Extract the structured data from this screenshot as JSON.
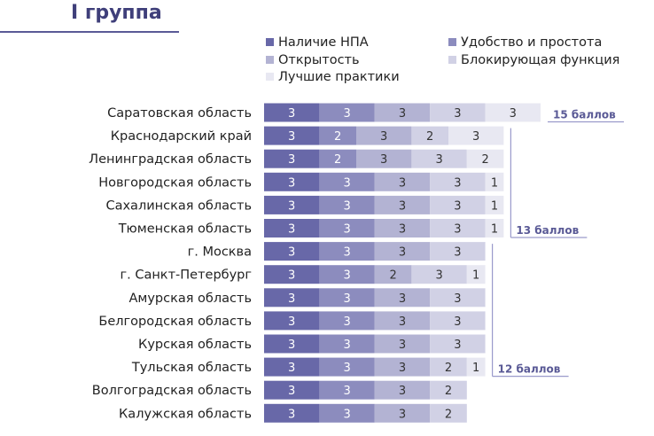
{
  "header": {
    "title": "I группа"
  },
  "colors": {
    "s0": "#6868a8",
    "s1": "#8c8cbe",
    "s2": "#b3b3d3",
    "s3": "#d1d1e5",
    "s4": "#e8e8f2",
    "bracket": "#9a9acb",
    "bracket_text": "#5a5a96"
  },
  "chart_data": {
    "type": "bar",
    "orientation": "horizontal",
    "stacked": true,
    "legend_position": "top-right",
    "grid": false,
    "categories": [
      "Саратовская область",
      "Краснодарский край",
      "Ленинградская область",
      "Новгородская область",
      "Сахалинская область",
      "Тюменская область",
      "г. Москва",
      "г. Санкт-Петербург",
      "Амурская область",
      "Белгородская область",
      "Курская область",
      "Тульская область",
      "Волгоградская область",
      "Калужская область"
    ],
    "series": [
      {
        "name": "Наличие НПА",
        "values": [
          3,
          3,
          3,
          3,
          3,
          3,
          3,
          3,
          3,
          3,
          3,
          3,
          3,
          3
        ]
      },
      {
        "name": "Удобство и простота",
        "values": [
          3,
          2,
          2,
          3,
          3,
          3,
          3,
          3,
          3,
          3,
          3,
          3,
          3,
          3
        ]
      },
      {
        "name": "Открытость",
        "values": [
          3,
          3,
          3,
          3,
          3,
          3,
          3,
          2,
          3,
          3,
          3,
          3,
          3,
          3
        ]
      },
      {
        "name": "Блокирующая функция",
        "values": [
          3,
          2,
          3,
          3,
          3,
          3,
          3,
          3,
          3,
          3,
          3,
          2,
          2,
          2
        ]
      },
      {
        "name": "Лучшие практики",
        "values": [
          3,
          3,
          2,
          1,
          1,
          1,
          0,
          1,
          0,
          0,
          0,
          1,
          0,
          0
        ]
      }
    ],
    "brackets": [
      {
        "label": "15 баллов",
        "from": 0,
        "to": 0
      },
      {
        "label": "13 баллов",
        "from": 1,
        "to": 5
      },
      {
        "label": "12 баллов",
        "from": 6,
        "to": 11
      }
    ]
  }
}
